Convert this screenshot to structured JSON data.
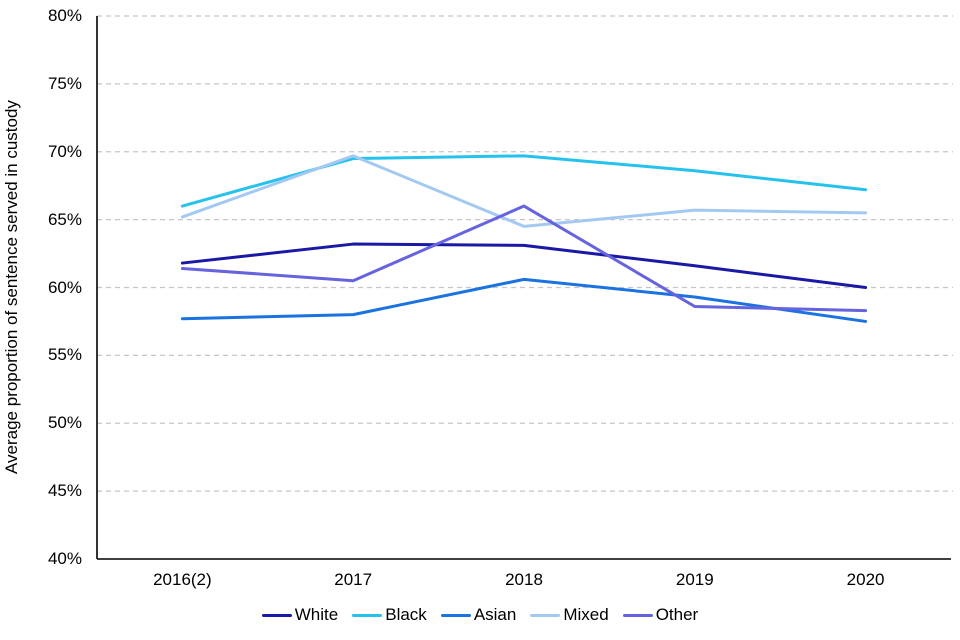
{
  "chart_data": {
    "type": "line",
    "title": "",
    "xlabel": "",
    "ylabel": "Average proportion of sentence served in custody",
    "categories": [
      "2016(2)",
      "2017",
      "2018",
      "2019",
      "2020"
    ],
    "series": [
      {
        "name": "White",
        "color": "#1A19A6",
        "values": [
          61.8,
          63.2,
          63.1,
          61.6,
          60.0
        ]
      },
      {
        "name": "Black",
        "color": "#25C2EE",
        "values": [
          66.0,
          69.5,
          69.7,
          68.6,
          67.2
        ]
      },
      {
        "name": "Asian",
        "color": "#1A73E0",
        "values": [
          57.7,
          58.0,
          60.6,
          59.3,
          57.5
        ]
      },
      {
        "name": "Mixed",
        "color": "#A3C9F2",
        "values": [
          65.2,
          69.7,
          64.5,
          65.7,
          65.5
        ]
      },
      {
        "name": "Other",
        "color": "#6663DF",
        "values": [
          61.4,
          60.5,
          66.0,
          58.6,
          58.3
        ]
      }
    ],
    "ylim": [
      40,
      80
    ],
    "ytick_step": 5,
    "ytick_labels": [
      "40%",
      "45%",
      "50%",
      "55%",
      "60%",
      "65%",
      "70%",
      "75%",
      "80%"
    ],
    "grid": "horizontal-dashed",
    "grid_color": "#C6C6C6",
    "axis_color": "#000000",
    "legend_position": "bottom"
  }
}
